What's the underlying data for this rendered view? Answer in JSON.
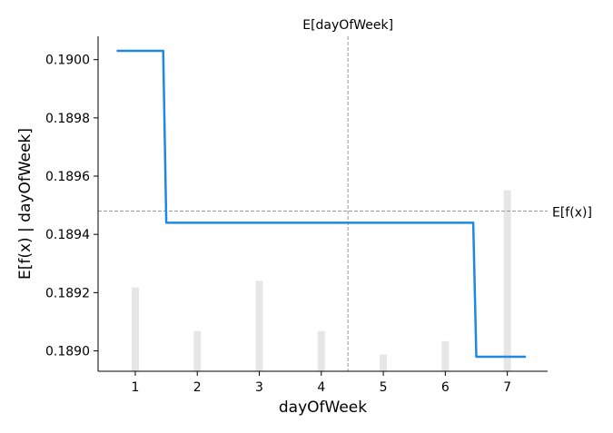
{
  "chart_data": {
    "type": "line",
    "xlabel": "dayOfWeek",
    "ylabel": "E[f(x) | dayOfWeek]",
    "xlim": [
      0.4,
      7.65
    ],
    "ylim": [
      0.18893,
      0.19008
    ],
    "x_ticks": [
      1,
      2,
      3,
      4,
      5,
      6,
      7
    ],
    "x_tick_labels": [
      "1",
      "2",
      "3",
      "4",
      "5",
      "6",
      "7"
    ],
    "y_ticks": [
      0.189,
      0.1892,
      0.1894,
      0.1896,
      0.1898,
      0.19
    ],
    "y_tick_labels": [
      "0.1890",
      "0.1892",
      "0.1894",
      "0.1896",
      "0.1898",
      "0.1900"
    ],
    "series": [
      {
        "x": [
          0.7,
          1.45,
          1.5,
          6.45,
          6.5,
          7.3
        ],
        "y": [
          0.19003,
          0.19003,
          0.18944,
          0.18944,
          0.18898,
          0.18898
        ],
        "color": "#1e88e5"
      }
    ],
    "histogram": {
      "x": [
        1,
        2,
        3,
        4,
        5,
        6,
        7
      ],
      "relative_heights": [
        0.25,
        0.12,
        0.27,
        0.12,
        0.05,
        0.09,
        0.54
      ],
      "color": "#e6e6e6"
    },
    "expected_x": {
      "value": 4.43,
      "label": "E[dayOfWeek]"
    },
    "expected_y": {
      "value": 0.18948,
      "label": "E[f(x)]"
    },
    "reference_line_color": "#999999",
    "grid": false
  }
}
